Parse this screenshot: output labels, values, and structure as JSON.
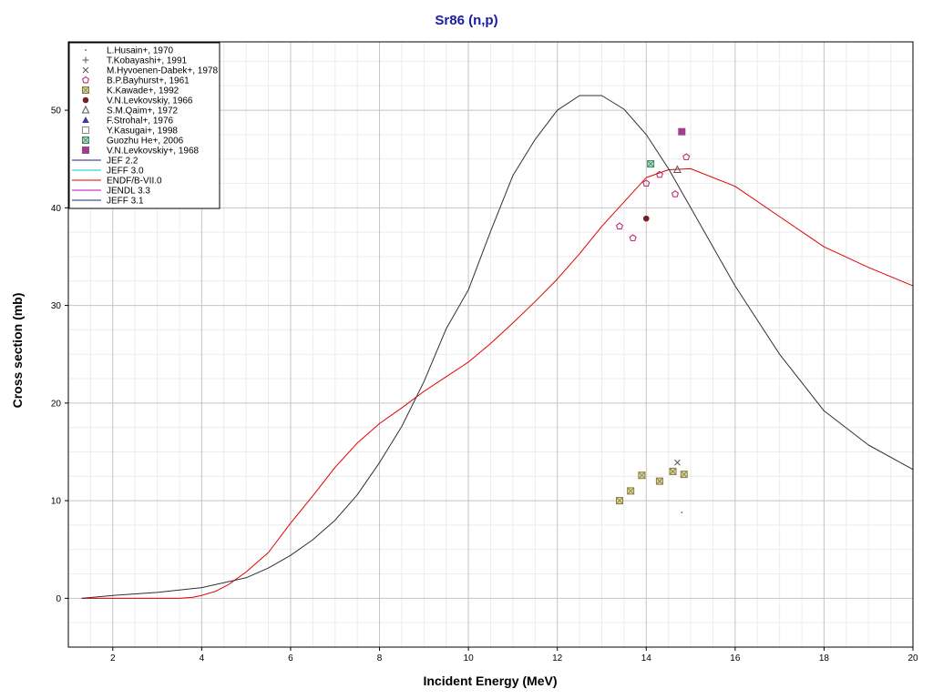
{
  "chart_data": {
    "type": "scatter",
    "title": "Sr86 (n,p)",
    "xlabel": "Incident Energy (MeV)",
    "ylabel": "Cross section (mb)",
    "xlim": [
      1,
      20
    ],
    "ylim": [
      -5,
      57
    ],
    "xticks": [
      2,
      4,
      6,
      8,
      10,
      12,
      14,
      16,
      18,
      20
    ],
    "yticks": [
      0,
      10,
      20,
      30,
      40,
      50
    ],
    "grid": true,
    "legend_position": "top-left",
    "series": [
      {
        "name": "L.Husain+, 1970",
        "kind": "points",
        "marker": "dot",
        "color": "#555555",
        "x": [
          14.8
        ],
        "y": [
          8.8
        ]
      },
      {
        "name": "T.Kobayashi+, 1991",
        "kind": "points",
        "marker": "plus",
        "color": "#555555",
        "x": [],
        "y": []
      },
      {
        "name": "M.Hyvoenen-Dabek+, 1978",
        "kind": "points",
        "marker": "x",
        "color": "#555555",
        "x": [
          14.7
        ],
        "y": [
          13.9
        ]
      },
      {
        "name": "B.P.Bayhurst+, 1961",
        "kind": "points",
        "marker": "pentagon",
        "color": "#c0307a",
        "x": [
          13.4,
          13.7,
          14.0,
          14.3,
          14.65,
          14.9
        ],
        "y": [
          38.1,
          36.9,
          42.5,
          43.4,
          41.4,
          45.2
        ]
      },
      {
        "name": "K.Kawade+, 1992",
        "kind": "points",
        "marker": "crossbox",
        "color": "#8a7a40",
        "x": [
          13.4,
          13.65,
          13.9,
          14.3,
          14.6,
          14.85
        ],
        "y": [
          10.0,
          11.0,
          12.6,
          12.0,
          13.0,
          12.7
        ]
      },
      {
        "name": "V.N.Levkovskiy, 1966",
        "kind": "points",
        "marker": "circle-filled",
        "color": "#7a2020",
        "x": [
          14.0
        ],
        "y": [
          38.9
        ]
      },
      {
        "name": "S.M.Qaim+, 1972",
        "kind": "points",
        "marker": "triangle",
        "color": "#555555",
        "x": [
          14.7
        ],
        "y": [
          43.9
        ]
      },
      {
        "name": "F.Strohal+, 1976",
        "kind": "points",
        "marker": "triangle-filled",
        "color": "#3a3aa0",
        "x": [],
        "y": []
      },
      {
        "name": "Y.Kasugai+, 1998",
        "kind": "points",
        "marker": "square",
        "color": "#888888",
        "x": [],
        "y": []
      },
      {
        "name": "Guozhu He+, 2006",
        "kind": "points",
        "marker": "crossbox",
        "color": "#2a8a7a",
        "x": [
          14.1
        ],
        "y": [
          44.5
        ]
      },
      {
        "name": "V.N.Levkovskiy+, 1968",
        "kind": "points",
        "marker": "square-filled",
        "color": "#a0408a",
        "x": [
          14.8
        ],
        "y": [
          47.8
        ]
      },
      {
        "name": "JEF 2.2",
        "kind": "line",
        "color": "#202080",
        "x": [],
        "y": []
      },
      {
        "name": "JEFF 3.0",
        "kind": "line",
        "color": "#00c8d8",
        "x": [],
        "y": []
      },
      {
        "name": "ENDF/B-VII.0",
        "kind": "line",
        "color": "#e00000",
        "x": [
          1.3,
          2,
          3,
          3.5,
          3.8,
          4,
          4.3,
          4.6,
          5,
          5.5,
          6,
          6.5,
          7,
          7.5,
          8,
          8.5,
          9,
          9.5,
          10,
          10.5,
          11,
          11.5,
          12,
          12.5,
          13,
          13.5,
          14,
          14.5,
          15,
          16,
          17,
          18,
          19,
          20
        ],
        "y": [
          0,
          0,
          0,
          0,
          0.1,
          0.3,
          0.7,
          1.4,
          2.7,
          4.7,
          7.7,
          10.5,
          13.4,
          15.9,
          17.9,
          19.5,
          21.2,
          22.7,
          24.2,
          26.1,
          28.2,
          30.4,
          32.7,
          35.3,
          38.1,
          40.6,
          43.1,
          43.9,
          44.0,
          42.2,
          39.1,
          36.0,
          33.9,
          32.0
        ]
      },
      {
        "name": "JENDL 3.3",
        "kind": "line",
        "color": "#c800c8",
        "x": [],
        "y": []
      },
      {
        "name": "JEFF 3.1",
        "kind": "line",
        "color": "#202080",
        "x": [],
        "y": []
      },
      {
        "name": "",
        "kind": "line",
        "color": "#303030",
        "x": [
          1.3,
          2,
          3,
          4,
          5,
          5.5,
          6,
          6.5,
          7,
          7.5,
          8,
          8.5,
          9,
          9.5,
          10,
          10.5,
          11,
          11.5,
          12,
          12.5,
          13,
          13.5,
          14,
          14.5,
          15,
          16,
          17,
          18,
          19,
          20
        ],
        "y": [
          0,
          0.3,
          0.6,
          1.1,
          2.1,
          3.1,
          4.4,
          6.0,
          8.0,
          10.6,
          13.9,
          17.6,
          22.2,
          27.6,
          31.6,
          37.6,
          43.3,
          47.0,
          50.0,
          51.5,
          51.5,
          50.1,
          47.5,
          44.0,
          40.0,
          32.0,
          25.0,
          19.2,
          15.7,
          13.2
        ]
      }
    ]
  }
}
